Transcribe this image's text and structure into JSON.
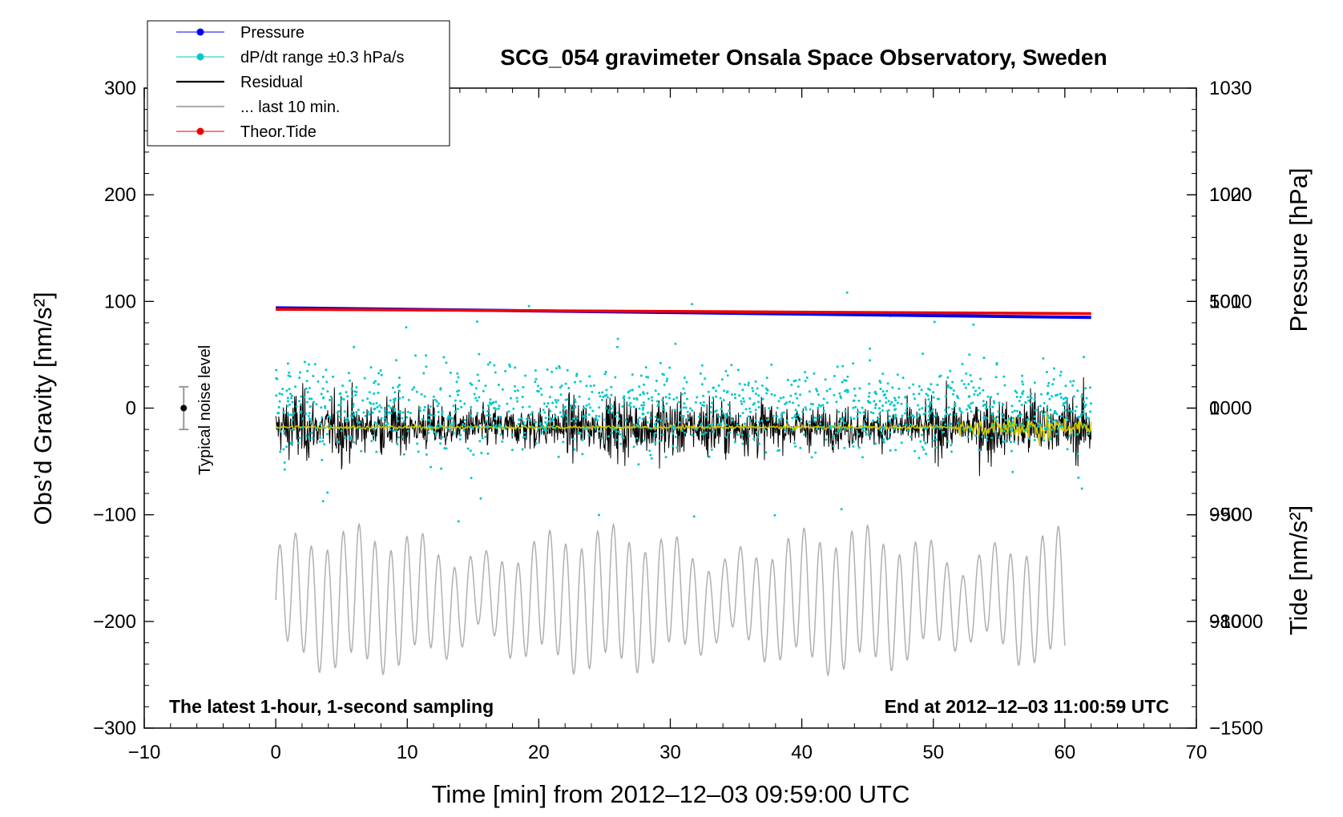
{
  "chart_data": {
    "type": "line",
    "title": "SCG_054 gravimeter Onsala Space Observatory, Sweden",
    "xlabel": "Time [min] from 2012‒12‒03 09:59:00 UTC",
    "ylabel_left": "Obs’d Gravity [nm/s²]",
    "ylabel_right_top": "Pressure [hPa]",
    "ylabel_right_bottom": "Tide [nm/s²]",
    "xlim": [
      -10,
      70
    ],
    "ylim_left": [
      -300,
      300
    ],
    "ylim_pressure": [
      970,
      1030
    ],
    "ylim_tide": [
      -1500,
      1500
    ],
    "x_ticks": [
      "−10",
      "0",
      "10",
      "20",
      "30",
      "40",
      "50",
      "60",
      "70"
    ],
    "x_tick_values": [
      -10,
      0,
      10,
      20,
      30,
      40,
      50,
      60,
      70
    ],
    "y_left_ticks": [
      "300",
      "200",
      "100",
      "0",
      "−100",
      "−200",
      "−300"
    ],
    "y_left_tick_values": [
      300,
      200,
      100,
      0,
      -100,
      -200,
      -300
    ],
    "y_pressure_ticks": [
      "1030",
      "1020",
      "1010",
      "1000",
      "990",
      "980"
    ],
    "y_pressure_tick_values": [
      1030,
      1020,
      1010,
      1000,
      990,
      980
    ],
    "y_tide_ticks": [
      "1000",
      "500",
      "0",
      "−500",
      "−1000",
      "−1500"
    ],
    "y_tide_tick_values": [
      1000,
      500,
      0,
      -500,
      -1000,
      -1500
    ],
    "legend": [
      {
        "label": "Pressure",
        "color": "#0000ee",
        "marker": true
      },
      {
        "label": "dP/dt range ±0.3 hPa/s",
        "color": "#00c8c8",
        "marker": true
      },
      {
        "label": "Residual",
        "color": "#000000",
        "marker": false
      },
      {
        "label": "... last 10 min.",
        "color": "#b0b0b0",
        "marker": false
      },
      {
        "label": "Theor.Tide",
        "color": "#ee0000",
        "marker": true
      }
    ],
    "series": [
      {
        "name": "Pressure",
        "axis": "pressure",
        "color": "#0000ee",
        "x": [
          0,
          62
        ],
        "values": [
          1009.4,
          1008.5
        ]
      },
      {
        "name": "dP/dt range ±0.3 hPa/s",
        "axis": "pressure",
        "color": "#00c8c8",
        "center": 1000,
        "spread": 4
      },
      {
        "name": "Residual",
        "axis": "left",
        "color": "#000000",
        "center": -18,
        "amplitude": 45,
        "x_range": [
          0,
          62
        ]
      },
      {
        "name": "Residual smoothed",
        "axis": "left",
        "color": "#c8c800",
        "center": -18
      },
      {
        "name": "... last 10 min.",
        "axis": "left",
        "color": "#b0b0b0",
        "center": -180,
        "amplitude": 60,
        "x_range": [
          0,
          60
        ]
      },
      {
        "name": "Theor.Tide",
        "axis": "tide",
        "color": "#ee0000",
        "x": [
          0,
          62
        ],
        "values": [
          463,
          443
        ]
      }
    ],
    "noise_level": {
      "label": "Typical noise level",
      "x": -7,
      "value": 0,
      "range": 20
    },
    "annotation_left": "The latest 1‑hour, 1‑second sampling",
    "annotation_right": "End at 2012‒12‒03 11:00:59 UTC"
  }
}
